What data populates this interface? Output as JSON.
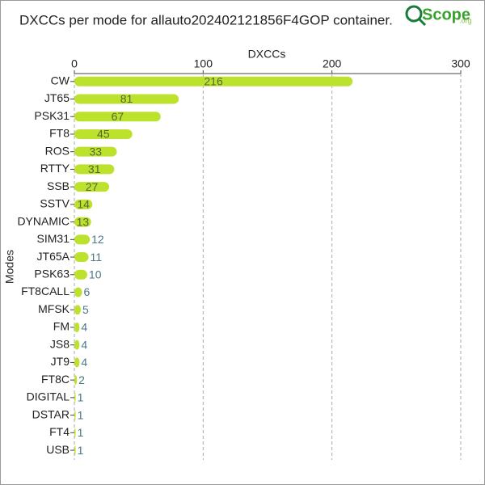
{
  "chart_data": {
    "type": "bar",
    "orientation": "horizontal",
    "title": "DXCCs per mode for allauto202402121856F4GOP container.",
    "logo": "Scope",
    "logo_suffix": ".org",
    "x_label": "DXCCs",
    "y_label": "Modes",
    "categories": [
      "CW",
      "JT65",
      "PSK31",
      "FT8",
      "ROS",
      "RTTY",
      "SSB",
      "SSTV",
      "DYNAMIC",
      "SIM31",
      "JT65A",
      "PSK63",
      "FT8CALL",
      "MFSK",
      "FM",
      "JS8",
      "JT9",
      "FT8C",
      "DIGITAL",
      "DSTAR",
      "FT4",
      "USB"
    ],
    "values": [
      216,
      81,
      67,
      45,
      33,
      31,
      27,
      14,
      13,
      12,
      11,
      10,
      6,
      5,
      4,
      4,
      4,
      2,
      1,
      1,
      1,
      1
    ],
    "color": "#bde22e",
    "xlim": [
      0,
      300
    ],
    "xticks": [
      0,
      100,
      200,
      300
    ],
    "grid": true
  }
}
